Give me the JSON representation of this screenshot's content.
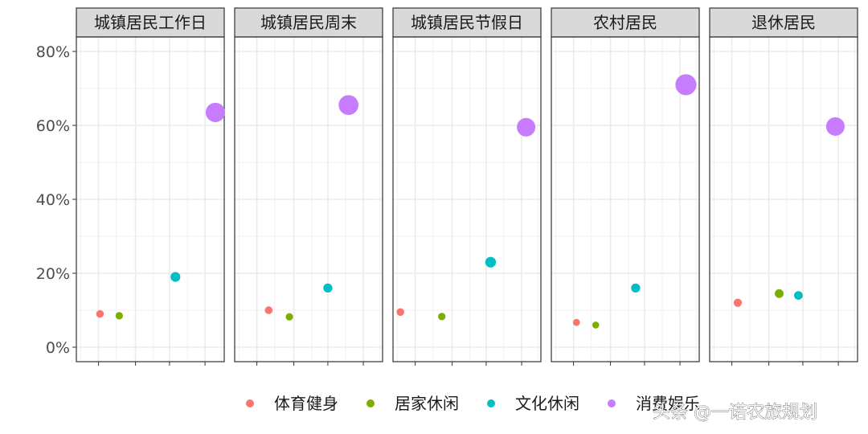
{
  "chart_data": {
    "type": "scatter",
    "facets": [
      "城镇居民工作日",
      "城镇居民周末",
      "城镇居民节假日",
      "农村居民",
      "退休居民"
    ],
    "yticks": [
      "0%",
      "20%",
      "40%",
      "60%",
      "80%"
    ],
    "ylim": [
      0,
      0.8
    ],
    "xlim": [
      0,
      1
    ],
    "grid": true,
    "legend_position": "bottom",
    "series": [
      {
        "name": "体育健身",
        "color": "#F8766D",
        "points": [
          {
            "x": 0.16,
            "y": 0.09
          },
          {
            "x": 0.23,
            "y": 0.1
          },
          {
            "x": 0.05,
            "y": 0.095
          },
          {
            "x": 0.17,
            "y": 0.067
          },
          {
            "x": 0.19,
            "y": 0.12
          }
        ],
        "sizes": [
          0.09,
          0.1,
          0.095,
          0.067,
          0.12
        ]
      },
      {
        "name": "居家休闲",
        "color": "#7CAE00",
        "points": [
          {
            "x": 0.29,
            "y": 0.085
          },
          {
            "x": 0.37,
            "y": 0.082
          },
          {
            "x": 0.33,
            "y": 0.083
          },
          {
            "x": 0.3,
            "y": 0.06
          },
          {
            "x": 0.47,
            "y": 0.145
          }
        ],
        "sizes": [
          0.085,
          0.082,
          0.083,
          0.06,
          0.145
        ]
      },
      {
        "name": "文化休闲",
        "color": "#00BFC4",
        "points": [
          {
            "x": 0.67,
            "y": 0.19
          },
          {
            "x": 0.63,
            "y": 0.16
          },
          {
            "x": 0.66,
            "y": 0.23
          },
          {
            "x": 0.57,
            "y": 0.16
          },
          {
            "x": 0.6,
            "y": 0.14
          }
        ],
        "sizes": [
          0.19,
          0.16,
          0.23,
          0.16,
          0.14
        ]
      },
      {
        "name": "消费娱乐",
        "color": "#C77CFF",
        "points": [
          {
            "x": 0.94,
            "y": 0.635
          },
          {
            "x": 0.77,
            "y": 0.655
          },
          {
            "x": 0.9,
            "y": 0.595
          },
          {
            "x": 0.91,
            "y": 0.71
          },
          {
            "x": 0.85,
            "y": 0.597
          }
        ],
        "sizes": [
          0.635,
          0.655,
          0.595,
          0.71,
          0.597
        ]
      }
    ]
  },
  "watermark": "头条 @一诺农旅规划"
}
